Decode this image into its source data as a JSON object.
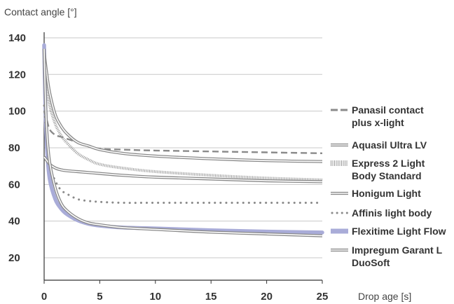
{
  "chart_data": {
    "type": "line",
    "ylabel": "Contact angle [°]",
    "xlabel": "Drop age [s]",
    "xlim": [
      0,
      25
    ],
    "ylim": [
      10,
      140
    ],
    "yticks": [
      20,
      40,
      60,
      80,
      100,
      120,
      140
    ],
    "xticks": [
      0,
      5,
      10,
      15,
      20,
      25
    ],
    "grid": "horizontal",
    "legend_position": "right",
    "series": [
      {
        "name": "Panasil contact plus x-light",
        "style": "dashed",
        "color": "#8a8a8a",
        "x": [
          0,
          0.25,
          0.5,
          1,
          1.5,
          2,
          3,
          4,
          5,
          7,
          10,
          15,
          20,
          25
        ],
        "y": [
          100,
          95,
          90,
          87,
          86,
          85,
          83,
          81,
          79.5,
          79,
          78.5,
          78,
          77.5,
          77
        ]
      },
      {
        "name": "Aquasil Ultra LV",
        "style": "double",
        "color": "#8a8a8a",
        "x": [
          0,
          0.2,
          0.5,
          1,
          1.5,
          2,
          3,
          4,
          5,
          7,
          10,
          15,
          20,
          25
        ],
        "y": [
          132,
          122,
          110,
          98,
          92,
          88,
          83,
          81,
          79,
          77,
          75.5,
          74,
          73,
          72.5
        ]
      },
      {
        "name": "Express 2 Light Body Standard",
        "style": "hatched",
        "color": "#9a9a9a",
        "x": [
          0,
          0.2,
          0.5,
          1,
          1.5,
          2,
          3,
          4,
          5,
          7,
          10,
          15,
          20,
          25
        ],
        "y": [
          127,
          115,
          103,
          93,
          87,
          83,
          77,
          73.5,
          71,
          69,
          67,
          65,
          63.5,
          62.5
        ]
      },
      {
        "name": "Honigum Light",
        "style": "double",
        "color": "#8a8a8a",
        "x": [
          0,
          0.25,
          0.5,
          1,
          1.5,
          2,
          3,
          4,
          5,
          7,
          10,
          15,
          20,
          25
        ],
        "y": [
          75,
          73,
          71,
          69,
          68,
          67.5,
          67,
          66.5,
          66,
          65,
          64,
          63,
          62,
          61.5
        ]
      },
      {
        "name": "Affinis light body",
        "style": "dotted",
        "color": "#8a8a8a",
        "x": [
          0,
          0.25,
          0.5,
          1,
          1.5,
          2,
          3,
          4,
          5,
          7,
          10,
          15,
          20,
          25
        ],
        "y": [
          103,
          85,
          70,
          62,
          57,
          55,
          52,
          51,
          50.5,
          50,
          50,
          50,
          50,
          50
        ]
      },
      {
        "name": "Flexitime Light Flow",
        "style": "thick",
        "color": "#a9acd8",
        "x": [
          0,
          0.1,
          0.25,
          0.5,
          1,
          1.5,
          2,
          3,
          4,
          5,
          7,
          10,
          15,
          20,
          25
        ],
        "y": [
          136,
          105,
          80,
          63,
          52,
          47,
          44,
          40.5,
          38.5,
          37.5,
          36.5,
          36,
          35,
          34.3,
          33.8
        ]
      },
      {
        "name": "Impregum Garant L DuoSoft",
        "style": "double",
        "color": "#8a8a8a",
        "x": [
          0,
          0.1,
          0.25,
          0.5,
          1,
          1.5,
          2,
          3,
          4,
          5,
          7,
          10,
          15,
          20,
          25
        ],
        "y": [
          134,
          110,
          88,
          72,
          58,
          50,
          46,
          41.5,
          39,
          38,
          36.5,
          35.5,
          34,
          33,
          32
        ]
      }
    ],
    "legend": [
      {
        "lines": [
          "Panasil contact",
          "plus x-light"
        ]
      },
      {
        "lines": [
          "Aquasil Ultra LV"
        ]
      },
      {
        "lines": [
          "Express 2 Light",
          "Body Standard"
        ]
      },
      {
        "lines": [
          "Honigum Light"
        ]
      },
      {
        "lines": [
          "Affinis light body"
        ]
      },
      {
        "lines": [
          "Flexitime Light Flow"
        ]
      },
      {
        "lines": [
          "Impregum Garant L",
          "DuoSoft"
        ]
      }
    ]
  }
}
